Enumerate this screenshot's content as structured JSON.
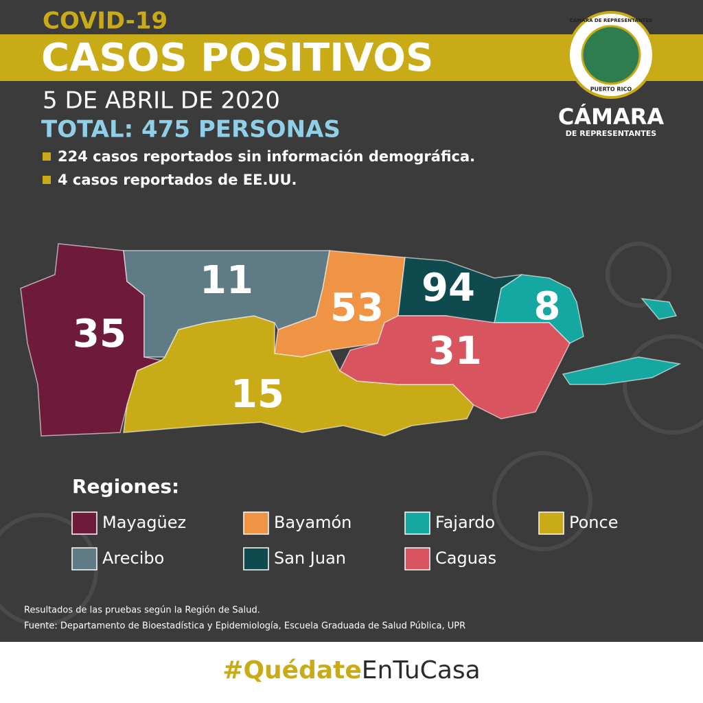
{
  "header": {
    "kicker": "COVID-19",
    "title": "CASOS POSITIVOS",
    "date": "5 DE ABRIL DE 2020",
    "total": "TOTAL: 475 PERSONAS",
    "notes": [
      "224 casos reportados sin información demográfica.",
      "4 casos reportados de EE.UU."
    ]
  },
  "logo": {
    "ring_top": "CÁMARA DE REPRESENTANTES",
    "ring_bottom": "PUERTO RICO",
    "name": "CÁMARA",
    "subname": "DE REPRESENTANTES"
  },
  "legend_title": "Regiones:",
  "regions": [
    {
      "name": "Mayagüez",
      "color": "#6e1a3a",
      "cases": 35
    },
    {
      "name": "Bayamón",
      "color": "#ef9444",
      "cases": 53
    },
    {
      "name": "Fajardo",
      "color": "#14a8a0",
      "cases": 8
    },
    {
      "name": "Ponce",
      "color": "#c9ab17",
      "cases": 15
    },
    {
      "name": "Arecibo",
      "color": "#5f7b86",
      "cases": 11
    },
    {
      "name": "San Juan",
      "color": "#0f4a4f",
      "cases": 94
    },
    {
      "name": "Caguas",
      "color": "#d8545f",
      "cases": 31
    }
  ],
  "footer": {
    "source_lines": [
      "Resultados de las pruebas según la Región de Salud.",
      "Fuente: Departamento de Bioestadística y Epidemiología, Escuela Graduada de Salud Pública, UPR"
    ],
    "hashtag_bold": "#Quédate",
    "hashtag_rest": "EnTuCasa"
  }
}
